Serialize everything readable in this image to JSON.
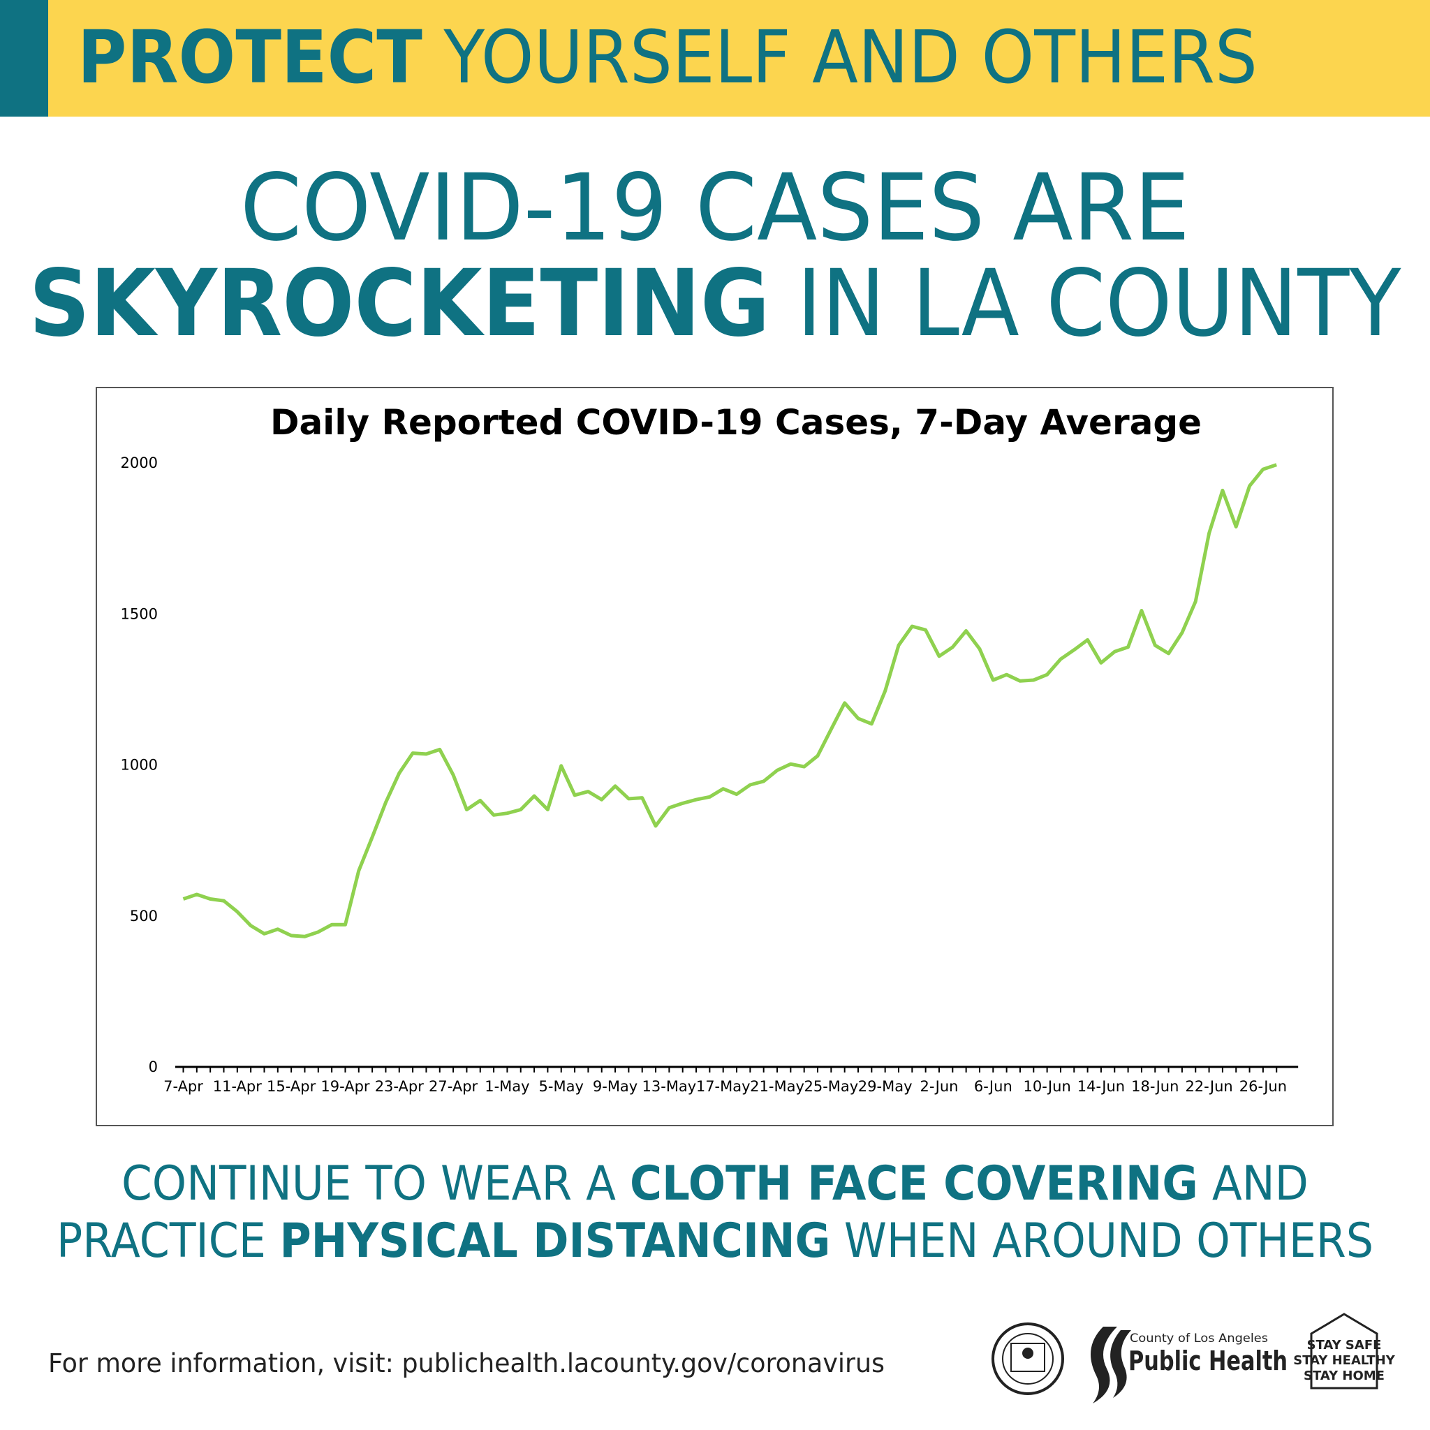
{
  "header": {
    "bold": "PROTECT",
    "regular": "YOURSELF AND OTHERS"
  },
  "headline": {
    "line1": "COVID-19 CASES ARE",
    "line2_bold": "SKYROCKETING",
    "line2_regular": "IN LA COUNTY"
  },
  "chart_data": {
    "type": "line",
    "title": "Daily Reported COVID-19 Cases, 7-Day Average",
    "categories": [
      "7-Apr",
      null,
      null,
      null,
      "11-Apr",
      null,
      null,
      null,
      "15-Apr",
      null,
      null,
      null,
      "19-Apr",
      null,
      null,
      null,
      "23-Apr",
      null,
      null,
      null,
      "27-Apr",
      null,
      null,
      null,
      "1-May",
      null,
      null,
      null,
      "5-May",
      null,
      null,
      null,
      "9-May",
      null,
      null,
      null,
      "13-May",
      null,
      null,
      null,
      "17-May",
      null,
      null,
      null,
      "21-May",
      null,
      null,
      null,
      "25-May",
      null,
      null,
      null,
      "29-May",
      null,
      null,
      null,
      "2-Jun",
      null,
      null,
      null,
      "6-Jun",
      null,
      null,
      null,
      "10-Jun",
      null,
      null,
      null,
      "14-Jun",
      null,
      null,
      null,
      "18-Jun",
      null,
      null,
      null,
      "22-Jun",
      null,
      null,
      null,
      "26-Jun",
      null
    ],
    "series": [
      {
        "color": "#8fd14f",
        "values": [
          556,
          571,
          556,
          550,
          514,
          468,
          441,
          456,
          435,
          432,
          447,
          471,
          471,
          650,
          761,
          876,
          973,
          1039,
          1036,
          1051,
          967,
          852,
          882,
          834,
          840,
          852,
          897,
          852,
          997,
          900,
          912,
          885,
          930,
          888,
          891,
          798,
          858,
          873,
          885,
          894,
          921,
          903,
          934,
          946,
          982,
          1003,
          994,
          1030,
          1118,
          1205,
          1154,
          1136,
          1245,
          1396,
          1459,
          1447,
          1360,
          1390,
          1444,
          1384,
          1281,
          1299,
          1278,
          1281,
          1299,
          1350,
          1381,
          1414,
          1338,
          1375,
          1390,
          1511,
          1396,
          1369,
          1438,
          1541,
          1767,
          1909,
          1789,
          1924,
          1979,
          1994
        ]
      }
    ],
    "ylim": [
      0,
      2000
    ],
    "yticks": [
      0,
      500,
      1000,
      1500,
      2000
    ],
    "grid": false
  },
  "message": {
    "line1": [
      "CONTINUE TO WEAR A",
      "CLOTH FACE COVERING",
      "AND"
    ],
    "line2": [
      "PRACTICE",
      "PHYSICAL DISTANCING",
      "WHEN AROUND OTHERS"
    ]
  },
  "footer": {
    "info": "For more information, visit: publichealth.lacounty.gov/coronavirus"
  },
  "logos": {
    "county": "County of Los Angeles",
    "department": "Public Health",
    "slogan": [
      "STAY SAFE",
      "STAY HEALTHY",
      "STAY HOME"
    ]
  }
}
